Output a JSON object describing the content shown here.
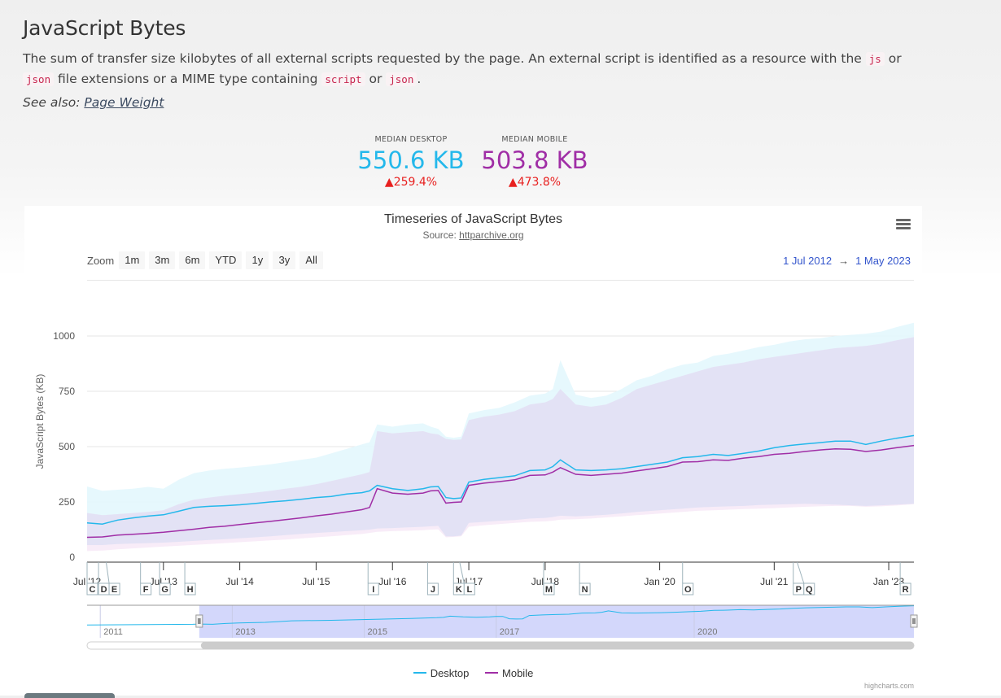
{
  "page": {
    "title": "JavaScript Bytes",
    "description_parts": [
      "The sum of transfer size kilobytes of all external scripts requested by the page. An external script is identified as a resource with the ",
      "js",
      " or ",
      "json",
      " file extensions or a MIME type containing ",
      "script",
      " or ",
      "json",
      "."
    ],
    "see_also_label": "See also:",
    "see_also_link": "Page Weight"
  },
  "kpis": {
    "desktop": {
      "label": "MEDIAN DESKTOP",
      "value": "550.6 KB",
      "change": "▲259.4%"
    },
    "mobile": {
      "label": "MEDIAN MOBILE",
      "value": "503.8 KB",
      "change": "▲473.8%"
    }
  },
  "chart": {
    "menu_icon": "hamburger-menu-icon",
    "zoom_label": "Zoom",
    "zoom_buttons": [
      "1m",
      "3m",
      "6m",
      "YTD",
      "1y",
      "3y",
      "All"
    ],
    "range_from": "1 Jul 2012",
    "range_arrow": "→",
    "range_to": "1 May 2023",
    "credits": "highcharts.com",
    "colors": {
      "desktop": "#24b8eb",
      "mobile": "#a02ea6",
      "desktop_band": "#e3f7fd",
      "mobile_band": "#f5e6f5",
      "overlap_band": "#e0e0f5",
      "navigator_mask": "#d3d7fb"
    }
  },
  "chart_data": {
    "type": "line",
    "title": "Timeseries of JavaScript Bytes",
    "subtitle_prefix": "Source: ",
    "subtitle_link": "httparchive.org",
    "xlabel": "",
    "ylabel": "JavaScript Bytes (KB)",
    "ylim": [
      0,
      1000
    ],
    "yticks": [
      0,
      250,
      500,
      750,
      1000
    ],
    "grid": true,
    "legend_position": "bottom-center",
    "xlim": [
      2012.5,
      2023.33
    ],
    "xticks": [
      {
        "x": 2012.5,
        "label": "Jul '12"
      },
      {
        "x": 2013.5,
        "label": "Jul '13"
      },
      {
        "x": 2014.5,
        "label": "Jul '14"
      },
      {
        "x": 2015.5,
        "label": "Jul '15"
      },
      {
        "x": 2016.5,
        "label": "Jul '16"
      },
      {
        "x": 2017.5,
        "label": "Jul '17"
      },
      {
        "x": 2018.5,
        "label": "Jul '18"
      },
      {
        "x": 2020.0,
        "label": "Jan '20"
      },
      {
        "x": 2021.5,
        "label": "Jul '21"
      },
      {
        "x": 2023.0,
        "label": "Jan '23"
      }
    ],
    "flags": [
      {
        "x": 2012.5,
        "label": "C"
      },
      {
        "x": 2012.65,
        "label": "D"
      },
      {
        "x": 2012.75,
        "label": "E"
      },
      {
        "x": 2013.2,
        "label": "F"
      },
      {
        "x": 2013.45,
        "label": "G"
      },
      {
        "x": 2013.78,
        "label": "H"
      },
      {
        "x": 2016.18,
        "label": "I"
      },
      {
        "x": 2016.96,
        "label": "J"
      },
      {
        "x": 2017.3,
        "label": "K"
      },
      {
        "x": 2017.38,
        "label": "L"
      },
      {
        "x": 2018.48,
        "label": "M"
      },
      {
        "x": 2018.95,
        "label": "N"
      },
      {
        "x": 2020.3,
        "label": "O"
      },
      {
        "x": 2021.75,
        "label": "P"
      },
      {
        "x": 2021.8,
        "label": "Q"
      },
      {
        "x": 2023.15,
        "label": "R"
      }
    ],
    "x": [
      2012.5,
      2012.7,
      2012.9,
      2013.1,
      2013.3,
      2013.5,
      2013.7,
      2013.9,
      2014.1,
      2014.3,
      2014.5,
      2014.7,
      2014.9,
      2015.1,
      2015.3,
      2015.5,
      2015.7,
      2015.9,
      2016.1,
      2016.2,
      2016.3,
      2016.5,
      2016.7,
      2016.9,
      2017.0,
      2017.1,
      2017.2,
      2017.3,
      2017.4,
      2017.5,
      2017.7,
      2017.9,
      2018.1,
      2018.3,
      2018.5,
      2018.6,
      2018.7,
      2018.9,
      2019.1,
      2019.3,
      2019.5,
      2019.7,
      2019.9,
      2020.1,
      2020.3,
      2020.5,
      2020.7,
      2020.9,
      2021.1,
      2021.3,
      2021.5,
      2021.7,
      2021.9,
      2022.1,
      2022.3,
      2022.5,
      2022.7,
      2022.9,
      2023.1,
      2023.33
    ],
    "series": [
      {
        "name": "Desktop",
        "values": [
          155,
          150,
          168,
          178,
          186,
          192,
          208,
          225,
          230,
          233,
          237,
          243,
          250,
          255,
          262,
          270,
          275,
          286,
          292,
          300,
          325,
          310,
          302,
          310,
          318,
          320,
          270,
          265,
          268,
          340,
          352,
          360,
          368,
          392,
          395,
          410,
          440,
          395,
          392,
          395,
          400,
          410,
          420,
          430,
          450,
          455,
          465,
          460,
          470,
          480,
          495,
          505,
          512,
          518,
          525,
          525,
          510,
          525,
          538,
          550
        ]
      },
      {
        "name": "Mobile",
        "values": [
          90,
          92,
          100,
          104,
          108,
          113,
          120,
          127,
          135,
          140,
          148,
          155,
          162,
          170,
          178,
          187,
          195,
          205,
          215,
          225,
          310,
          290,
          285,
          290,
          300,
          302,
          245,
          248,
          250,
          325,
          335,
          342,
          350,
          370,
          372,
          385,
          405,
          375,
          370,
          375,
          380,
          390,
          400,
          410,
          430,
          432,
          440,
          438,
          448,
          455,
          465,
          470,
          478,
          485,
          490,
          488,
          478,
          485,
          495,
          505
        ]
      },
      {
        "name": "Desktop range (p10–p90)",
        "low": [
          55,
          55,
          60,
          62,
          64,
          66,
          70,
          74,
          78,
          82,
          86,
          90,
          95,
          100,
          105,
          110,
          114,
          118,
          122,
          125,
          130,
          132,
          135,
          138,
          140,
          142,
          95,
          95,
          98,
          155,
          160,
          165,
          168,
          175,
          178,
          182,
          188,
          185,
          188,
          192,
          198,
          205,
          210,
          215,
          220,
          225,
          228,
          230,
          232,
          236,
          238,
          240,
          242,
          240,
          238,
          235,
          232,
          235,
          238,
          242
        ],
        "high": [
          320,
          300,
          305,
          310,
          318,
          310,
          350,
          380,
          392,
          400,
          405,
          412,
          420,
          430,
          440,
          450,
          470,
          490,
          510,
          520,
          600,
          590,
          600,
          605,
          590,
          580,
          545,
          540,
          545,
          650,
          665,
          675,
          700,
          730,
          740,
          760,
          890,
          735,
          720,
          730,
          760,
          800,
          820,
          850,
          870,
          880,
          910,
          920,
          935,
          950,
          960,
          975,
          985,
          990,
          1000,
          1005,
          1010,
          1020,
          1040,
          1060
        ]
      },
      {
        "name": "Mobile range (p10–p90)",
        "low": [
          28,
          30,
          36,
          40,
          44,
          48,
          52,
          56,
          60,
          64,
          68,
          72,
          76,
          80,
          85,
          90,
          95,
          100,
          105,
          110,
          115,
          118,
          120,
          122,
          125,
          126,
          90,
          92,
          95,
          138,
          145,
          150,
          155,
          160,
          162,
          165,
          170,
          172,
          175,
          180,
          185,
          190,
          195,
          200,
          205,
          210,
          212,
          215,
          218,
          220,
          222,
          225,
          228,
          230,
          232,
          232,
          228,
          230,
          234,
          240
        ],
        "high": [
          200,
          190,
          195,
          200,
          205,
          212,
          240,
          260,
          270,
          278,
          285,
          292,
          300,
          310,
          318,
          330,
          345,
          360,
          375,
          385,
          570,
          560,
          565,
          570,
          560,
          555,
          535,
          530,
          532,
          620,
          635,
          645,
          660,
          690,
          700,
          715,
          760,
          690,
          680,
          690,
          720,
          760,
          780,
          800,
          820,
          840,
          860,
          870,
          880,
          895,
          905,
          915,
          925,
          935,
          945,
          950,
          955,
          965,
          980,
          995
        ]
      }
    ],
    "navigator": {
      "xticks": [
        {
          "x": 2011.0,
          "label": "2011"
        },
        {
          "x": 2013.0,
          "label": "2013"
        },
        {
          "x": 2015.0,
          "label": "2015"
        },
        {
          "x": 2017.0,
          "label": "2017"
        },
        {
          "x": 2020.0,
          "label": "2020"
        }
      ],
      "xlim": [
        2010.8,
        2023.33
      ],
      "selected_range": [
        2012.5,
        2023.33
      ]
    },
    "legend": [
      "Desktop",
      "Mobile"
    ]
  }
}
